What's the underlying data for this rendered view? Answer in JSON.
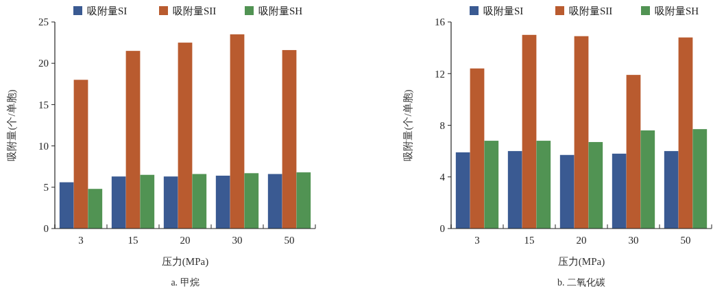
{
  "chart_data": [
    {
      "type": "bar",
      "title": "a. 甲烷",
      "xlabel": "压力(MPa)",
      "ylabel": "吸附量(个/单胞)",
      "categories": [
        "3",
        "15",
        "20",
        "30",
        "50"
      ],
      "series": [
        {
          "name": "吸附量SI",
          "color": "#3a5a92",
          "values": [
            5.6,
            6.3,
            6.3,
            6.4,
            6.6
          ]
        },
        {
          "name": "吸附量SII",
          "color": "#b95b2f",
          "values": [
            18.0,
            21.5,
            22.5,
            23.5,
            21.6
          ]
        },
        {
          "name": "吸附量SH",
          "color": "#519353",
          "values": [
            4.8,
            6.5,
            6.6,
            6.7,
            6.8
          ]
        }
      ],
      "ylim": [
        0,
        25
      ],
      "yticks": [
        0,
        5,
        10,
        15,
        20,
        25
      ],
      "legend": "top",
      "grid": false
    },
    {
      "type": "bar",
      "title": "b. 二氧化碳",
      "xlabel": "压力(MPa)",
      "ylabel": "吸附量(个/单胞)",
      "categories": [
        "3",
        "15",
        "20",
        "30",
        "50"
      ],
      "series": [
        {
          "name": "吸附量SI",
          "color": "#3a5a92",
          "values": [
            5.9,
            6.0,
            5.7,
            5.8,
            6.0
          ]
        },
        {
          "name": "吸附量SII",
          "color": "#b95b2f",
          "values": [
            12.4,
            15.0,
            14.9,
            11.9,
            14.8
          ]
        },
        {
          "name": "吸附量SH",
          "color": "#519353",
          "values": [
            6.8,
            6.8,
            6.7,
            7.6,
            7.7
          ]
        }
      ],
      "ylim": [
        0,
        16
      ],
      "yticks": [
        0,
        4,
        8,
        12,
        16
      ],
      "legend": "top",
      "grid": false
    }
  ]
}
